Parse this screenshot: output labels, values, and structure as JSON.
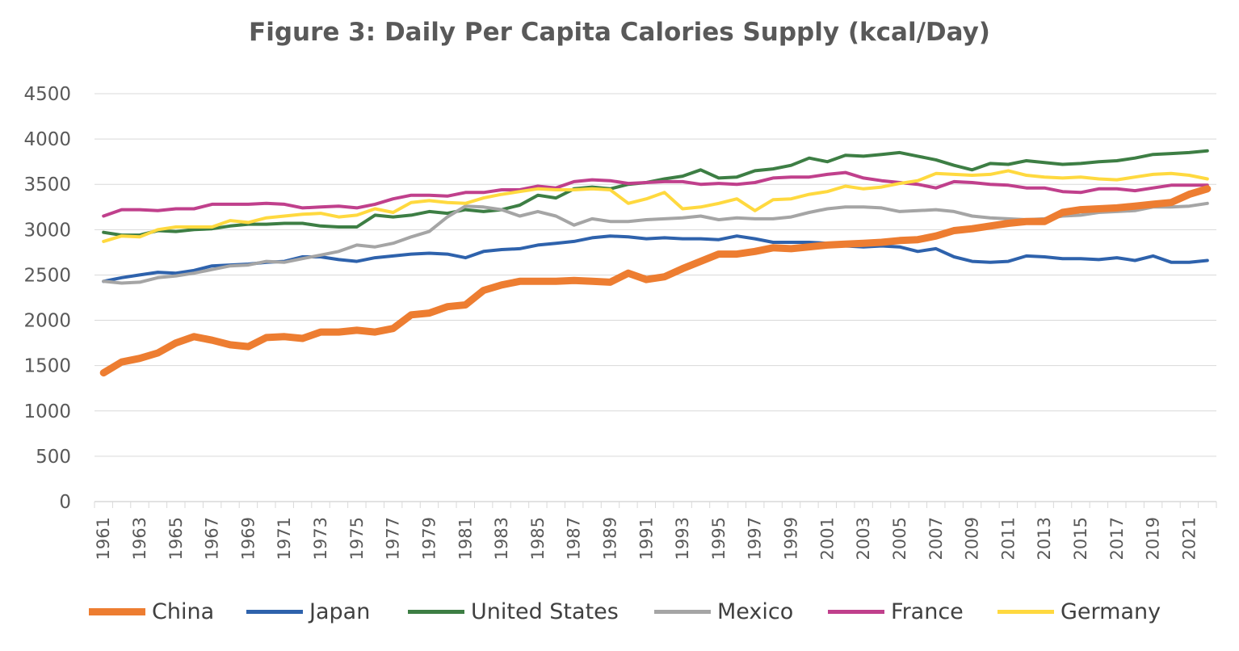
{
  "chart_data": {
    "type": "line",
    "title": "Figure 3: Daily Per Capita Calories Supply (kcal/Day)",
    "xlabel": "",
    "ylabel": "",
    "ylim": [
      0,
      4500
    ],
    "yticks": [
      "0",
      "500",
      "1000",
      "1500",
      "2000",
      "2500",
      "3000",
      "3500",
      "4000",
      "4500"
    ],
    "x": [
      1961,
      1962,
      1963,
      1964,
      1965,
      1966,
      1967,
      1968,
      1969,
      1970,
      1971,
      1972,
      1973,
      1974,
      1975,
      1976,
      1977,
      1978,
      1979,
      1980,
      1981,
      1982,
      1983,
      1984,
      1985,
      1986,
      1987,
      1988,
      1989,
      1990,
      1991,
      1992,
      1993,
      1994,
      1995,
      1996,
      1997,
      1998,
      1999,
      2000,
      2001,
      2002,
      2003,
      2004,
      2005,
      2006,
      2007,
      2008,
      2009,
      2010,
      2011,
      2012,
      2013,
      2014,
      2015,
      2016,
      2017,
      2018,
      2019,
      2020,
      2021,
      2022
    ],
    "xtick_labels": [
      "1961",
      "1963",
      "1965",
      "1967",
      "1969",
      "1971",
      "1973",
      "1975",
      "1977",
      "1979",
      "1981",
      "1983",
      "1985",
      "1987",
      "1989",
      "1991",
      "1993",
      "1995",
      "1997",
      "1999",
      "2001",
      "2003",
      "2005",
      "2007",
      "2009",
      "2011",
      "2013",
      "2015",
      "2017",
      "2019",
      "2021"
    ],
    "grid": "horizontal",
    "legend_position": "bottom",
    "series": [
      {
        "name": "China",
        "color": "#ED7D31",
        "width": 9,
        "values": [
          1420,
          1540,
          1580,
          1640,
          1750,
          1820,
          1780,
          1730,
          1710,
          1810,
          1820,
          1800,
          1870,
          1870,
          1890,
          1870,
          1910,
          2060,
          2080,
          2150,
          2170,
          2330,
          2390,
          2430,
          2430,
          2430,
          2440,
          2430,
          2420,
          2520,
          2450,
          2480,
          2570,
          2650,
          2730,
          2730,
          2760,
          2800,
          2790,
          2810,
          2830,
          2840,
          2850,
          2860,
          2880,
          2890,
          2930,
          2990,
          3010,
          3040,
          3070,
          3090,
          3090,
          3190,
          3220,
          3230,
          3240,
          3260,
          3280,
          3300,
          3390,
          3450
        ]
      },
      {
        "name": "Japan",
        "color": "#2E62AC",
        "width": 4,
        "values": [
          2430,
          2470,
          2500,
          2530,
          2520,
          2550,
          2600,
          2610,
          2620,
          2640,
          2650,
          2700,
          2700,
          2670,
          2650,
          2690,
          2710,
          2730,
          2740,
          2730,
          2690,
          2760,
          2780,
          2790,
          2830,
          2850,
          2870,
          2910,
          2930,
          2920,
          2900,
          2910,
          2900,
          2900,
          2890,
          2930,
          2900,
          2860,
          2860,
          2860,
          2850,
          2820,
          2810,
          2820,
          2810,
          2760,
          2790,
          2700,
          2650,
          2640,
          2650,
          2710,
          2700,
          2680,
          2680,
          2670,
          2690,
          2660,
          2710,
          2640,
          2640,
          2660
        ]
      },
      {
        "name": "United States",
        "color": "#3D7E44",
        "width": 4,
        "values": [
          2970,
          2940,
          2940,
          2990,
          2980,
          3000,
          3010,
          3040,
          3060,
          3060,
          3070,
          3070,
          3040,
          3030,
          3030,
          3160,
          3140,
          3160,
          3200,
          3180,
          3220,
          3200,
          3220,
          3270,
          3380,
          3350,
          3450,
          3470,
          3450,
          3500,
          3520,
          3560,
          3590,
          3660,
          3570,
          3580,
          3650,
          3670,
          3710,
          3790,
          3750,
          3820,
          3810,
          3830,
          3850,
          3810,
          3770,
          3710,
          3660,
          3730,
          3720,
          3760,
          3740,
          3720,
          3730,
          3750,
          3760,
          3790,
          3830,
          3840,
          3850,
          3870
        ]
      },
      {
        "name": "Mexico",
        "color": "#A5A5A5",
        "width": 4,
        "values": [
          2430,
          2410,
          2420,
          2470,
          2490,
          2520,
          2560,
          2600,
          2610,
          2650,
          2640,
          2680,
          2720,
          2760,
          2830,
          2810,
          2850,
          2920,
          2980,
          3140,
          3260,
          3250,
          3220,
          3150,
          3200,
          3150,
          3050,
          3120,
          3090,
          3090,
          3110,
          3120,
          3130,
          3150,
          3110,
          3130,
          3120,
          3120,
          3140,
          3190,
          3230,
          3250,
          3250,
          3240,
          3200,
          3210,
          3220,
          3200,
          3150,
          3130,
          3120,
          3110,
          3120,
          3150,
          3160,
          3190,
          3200,
          3210,
          3250,
          3250,
          3260,
          3290
        ]
      },
      {
        "name": "France",
        "color": "#C0408C",
        "width": 4,
        "values": [
          3150,
          3220,
          3220,
          3210,
          3230,
          3230,
          3280,
          3280,
          3280,
          3290,
          3280,
          3240,
          3250,
          3260,
          3240,
          3280,
          3340,
          3380,
          3380,
          3370,
          3410,
          3410,
          3440,
          3440,
          3480,
          3460,
          3530,
          3550,
          3540,
          3510,
          3520,
          3530,
          3530,
          3500,
          3510,
          3500,
          3520,
          3570,
          3580,
          3580,
          3610,
          3630,
          3570,
          3540,
          3520,
          3500,
          3460,
          3530,
          3520,
          3500,
          3490,
          3460,
          3460,
          3420,
          3410,
          3450,
          3450,
          3430,
          3460,
          3490,
          3490,
          3490
        ]
      },
      {
        "name": "Germany",
        "color": "#FFD93F",
        "width": 4,
        "values": [
          2870,
          2930,
          2920,
          3000,
          3030,
          3030,
          3030,
          3100,
          3080,
          3130,
          3150,
          3170,
          3180,
          3140,
          3160,
          3230,
          3190,
          3300,
          3320,
          3300,
          3290,
          3350,
          3390,
          3420,
          3450,
          3440,
          3440,
          3450,
          3440,
          3290,
          3340,
          3410,
          3230,
          3250,
          3290,
          3340,
          3210,
          3330,
          3340,
          3390,
          3420,
          3480,
          3450,
          3470,
          3510,
          3540,
          3620,
          3610,
          3600,
          3610,
          3650,
          3600,
          3580,
          3570,
          3580,
          3560,
          3550,
          3580,
          3610,
          3620,
          3600,
          3560
        ]
      }
    ]
  }
}
